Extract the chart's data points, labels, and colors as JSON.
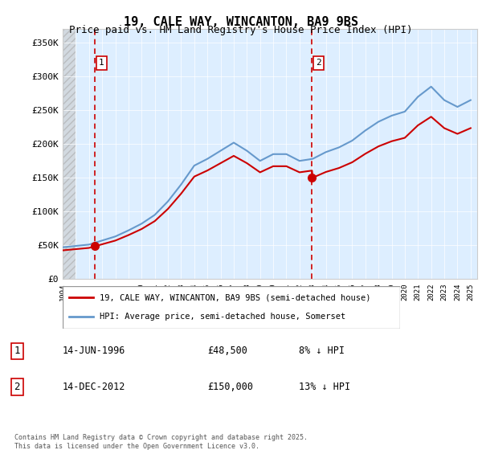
{
  "title": "19, CALE WAY, WINCANTON, BA9 9BS",
  "subtitle": "Price paid vs. HM Land Registry's House Price Index (HPI)",
  "ylim": [
    0,
    370000
  ],
  "yticks": [
    0,
    50000,
    100000,
    150000,
    200000,
    250000,
    300000,
    350000
  ],
  "ytick_labels": [
    "£0",
    "£50K",
    "£100K",
    "£150K",
    "£200K",
    "£250K",
    "£300K",
    "£350K"
  ],
  "legend_line1": "19, CALE WAY, WINCANTON, BA9 9BS (semi-detached house)",
  "legend_line2": "HPI: Average price, semi-detached house, Somerset",
  "sale1_label": "1",
  "sale1_date": "14-JUN-1996",
  "sale1_price": "£48,500",
  "sale1_note": "8% ↓ HPI",
  "sale2_label": "2",
  "sale2_date": "14-DEC-2012",
  "sale2_price": "£150,000",
  "sale2_note": "13% ↓ HPI",
  "footer": "Contains HM Land Registry data © Crown copyright and database right 2025.\nThis data is licensed under the Open Government Licence v3.0.",
  "red_line_color": "#cc0000",
  "blue_line_color": "#6699cc",
  "background_plot": "#ddeeff",
  "background_hatch": "#cccccc",
  "grid_color": "#ffffff",
  "sale1_x_year": 1996.45,
  "sale2_x_year": 2012.95,
  "hpi_years": [
    1994,
    1995,
    1996,
    1997,
    1998,
    1999,
    2000,
    2001,
    2002,
    2003,
    2004,
    2005,
    2006,
    2007,
    2008,
    2009,
    2010,
    2011,
    2012,
    2013,
    2014,
    2015,
    2016,
    2017,
    2018,
    2019,
    2020,
    2021,
    2022,
    2023,
    2024,
    2025
  ],
  "hpi_values": [
    47000,
    49000,
    51000,
    57000,
    63000,
    72000,
    82000,
    95000,
    115000,
    140000,
    168000,
    178000,
    190000,
    202000,
    190000,
    175000,
    185000,
    185000,
    175000,
    178000,
    188000,
    195000,
    205000,
    220000,
    233000,
    242000,
    248000,
    270000,
    285000,
    265000,
    255000,
    265000
  ],
  "price_paid_years": [
    1996.45,
    2012.95
  ],
  "price_paid_values": [
    48500,
    150000
  ],
  "xmin": 1994,
  "xmax": 2025.5
}
